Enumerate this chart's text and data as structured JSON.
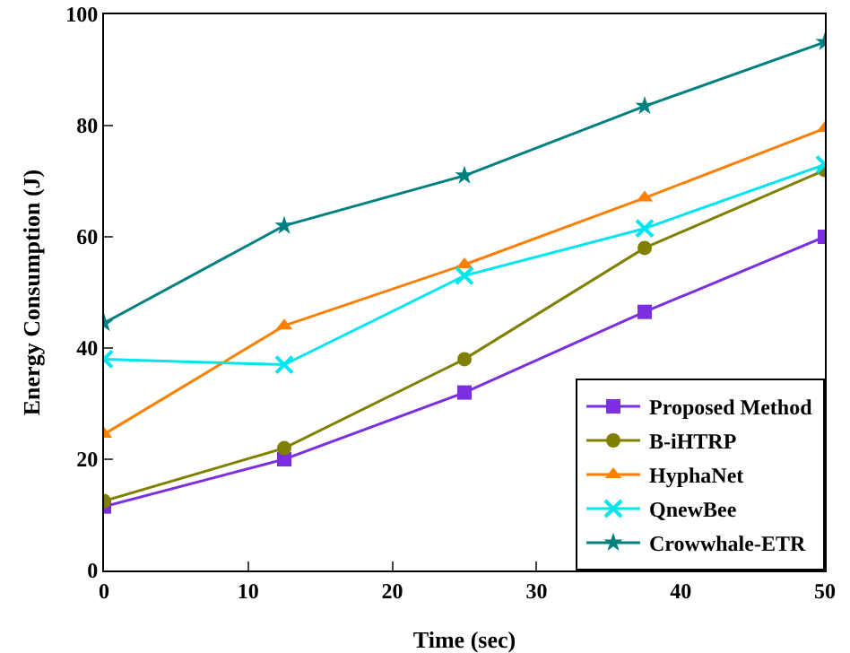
{
  "chart_data": {
    "type": "line",
    "xlabel": "Time (sec)",
    "ylabel": "Energy Consumption (J)",
    "x": [
      0,
      12.5,
      25,
      37.5,
      50
    ],
    "xlim": [
      0,
      50
    ],
    "xticks": [
      0,
      10,
      20,
      30,
      40,
      50
    ],
    "ylim": [
      0,
      100
    ],
    "yticks": [
      0,
      20,
      40,
      60,
      80,
      100
    ],
    "grid": false,
    "legend": "bottom right",
    "line_style": "solid",
    "series": [
      {
        "name": "Proposed Method",
        "color": "#7b2fe0",
        "marker": "square",
        "values": [
          11.5,
          20,
          32,
          46.5,
          60
        ]
      },
      {
        "name": "B-iHTRP",
        "color": "#808000",
        "marker": "circle",
        "values": [
          12.5,
          22,
          38,
          58,
          72
        ]
      },
      {
        "name": "HyphaNet",
        "color": "#ff8000",
        "marker": "triangle",
        "values": [
          24.5,
          44,
          55,
          67,
          79.5
        ]
      },
      {
        "name": "QnewBee",
        "color": "#00e5ee",
        "marker": "cross",
        "values": [
          38,
          37,
          53,
          61.5,
          73
        ]
      },
      {
        "name": "Crowwhale-ETR",
        "color": "#008080",
        "marker": "star",
        "values": [
          44.5,
          62,
          71,
          83.5,
          95
        ]
      }
    ]
  }
}
